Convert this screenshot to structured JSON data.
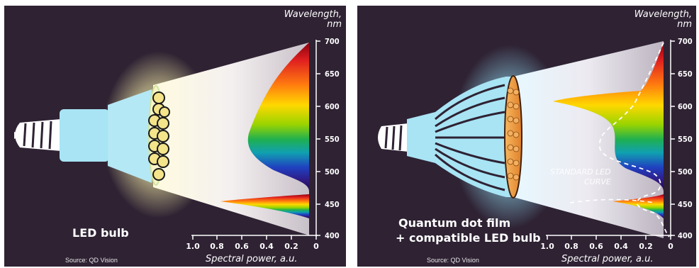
{
  "left_panel": {
    "bulb_label": "LED bulb",
    "source": "Source: QD Vision"
  },
  "right_panel": {
    "bulb_label_line1": "Quantum dot film",
    "bulb_label_line2": "+ compatible LED bulb",
    "source": "Source: QD Vision",
    "curve_label_line1": "STANDARD LED",
    "curve_label_line2": "CURVE"
  },
  "axes": {
    "y_title_line1": "Wavelength,",
    "y_title_line2": "nm",
    "y_ticks": [
      "700",
      "650",
      "600",
      "550",
      "500",
      "450",
      "400"
    ],
    "x_title": "Spectral power, a.u.",
    "x_ticks": [
      "1.0",
      "0.8",
      "0.6",
      "0.4",
      "0.2",
      "0"
    ]
  },
  "colors": {
    "background": "#2e2233",
    "bulb_blue": "#a8e4f4",
    "led_yellow": "#f4e48a",
    "qd_orange": "#f09a3a"
  }
}
